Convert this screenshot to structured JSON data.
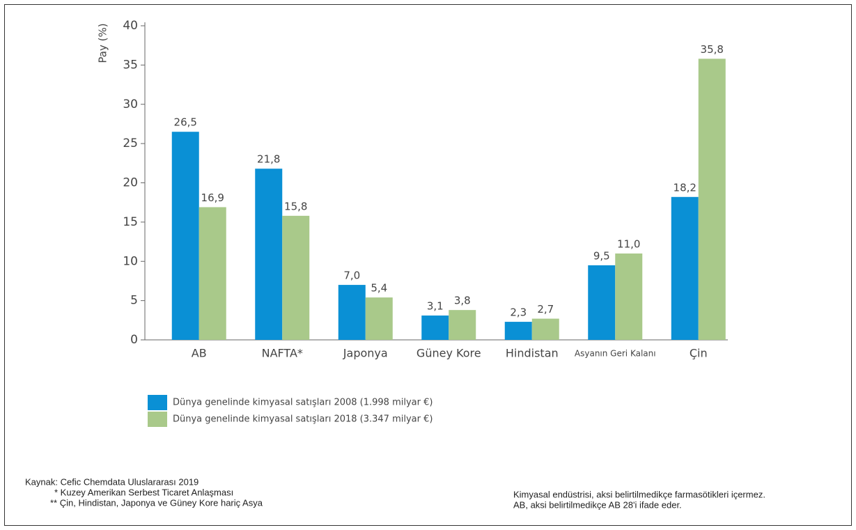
{
  "chart_data": {
    "type": "bar",
    "y_label": "Pay (%)",
    "categories": [
      "AB",
      "NAFTA*",
      "Japonya",
      "Güney Kore",
      "Hindistan",
      "Asyanın Geri Kalanı",
      "Çin"
    ],
    "series": [
      {
        "name": "Dünya genelinde kimyasal satışları 2008 (1.998 milyar €)",
        "color": "#0a90d5",
        "values": [
          26.5,
          21.8,
          7.0,
          3.1,
          2.3,
          9.5,
          18.2
        ],
        "value_labels": [
          "26,5",
          "21,8",
          "7,0",
          "3,1",
          "2,3",
          "9,5",
          "18,2"
        ]
      },
      {
        "name": "Dünya genelinde kimyasal satışları 2018 (3.347 milyar €)",
        "color": "#a9c98a",
        "values": [
          16.9,
          15.8,
          5.4,
          3.8,
          2.7,
          11.0,
          35.8
        ],
        "value_labels": [
          "16,9",
          "15,8",
          "5,4",
          "3,8",
          "2,7",
          "11,0",
          "35,8"
        ]
      }
    ],
    "ylim": [
      0,
      40
    ],
    "yticks": [
      0,
      5,
      10,
      15,
      20,
      25,
      30,
      35,
      40
    ],
    "grid": false
  },
  "footer": {
    "source": "Kaynak: Cefic Chemdata Uluslararası 2019",
    "notes_left": [
      "* Kuzey Amerikan Serbest Ticaret Anlaşması",
      "** Çin, Hindistan, Japonya ve Güney Kore hariç Asya"
    ],
    "notes_right": [
      "Kimyasal endüstrisi, aksi belirtilmedikçe farmasötikleri içermez.",
      "AB, aksi belirtilmedikçe AB 28'i ifade eder."
    ]
  }
}
